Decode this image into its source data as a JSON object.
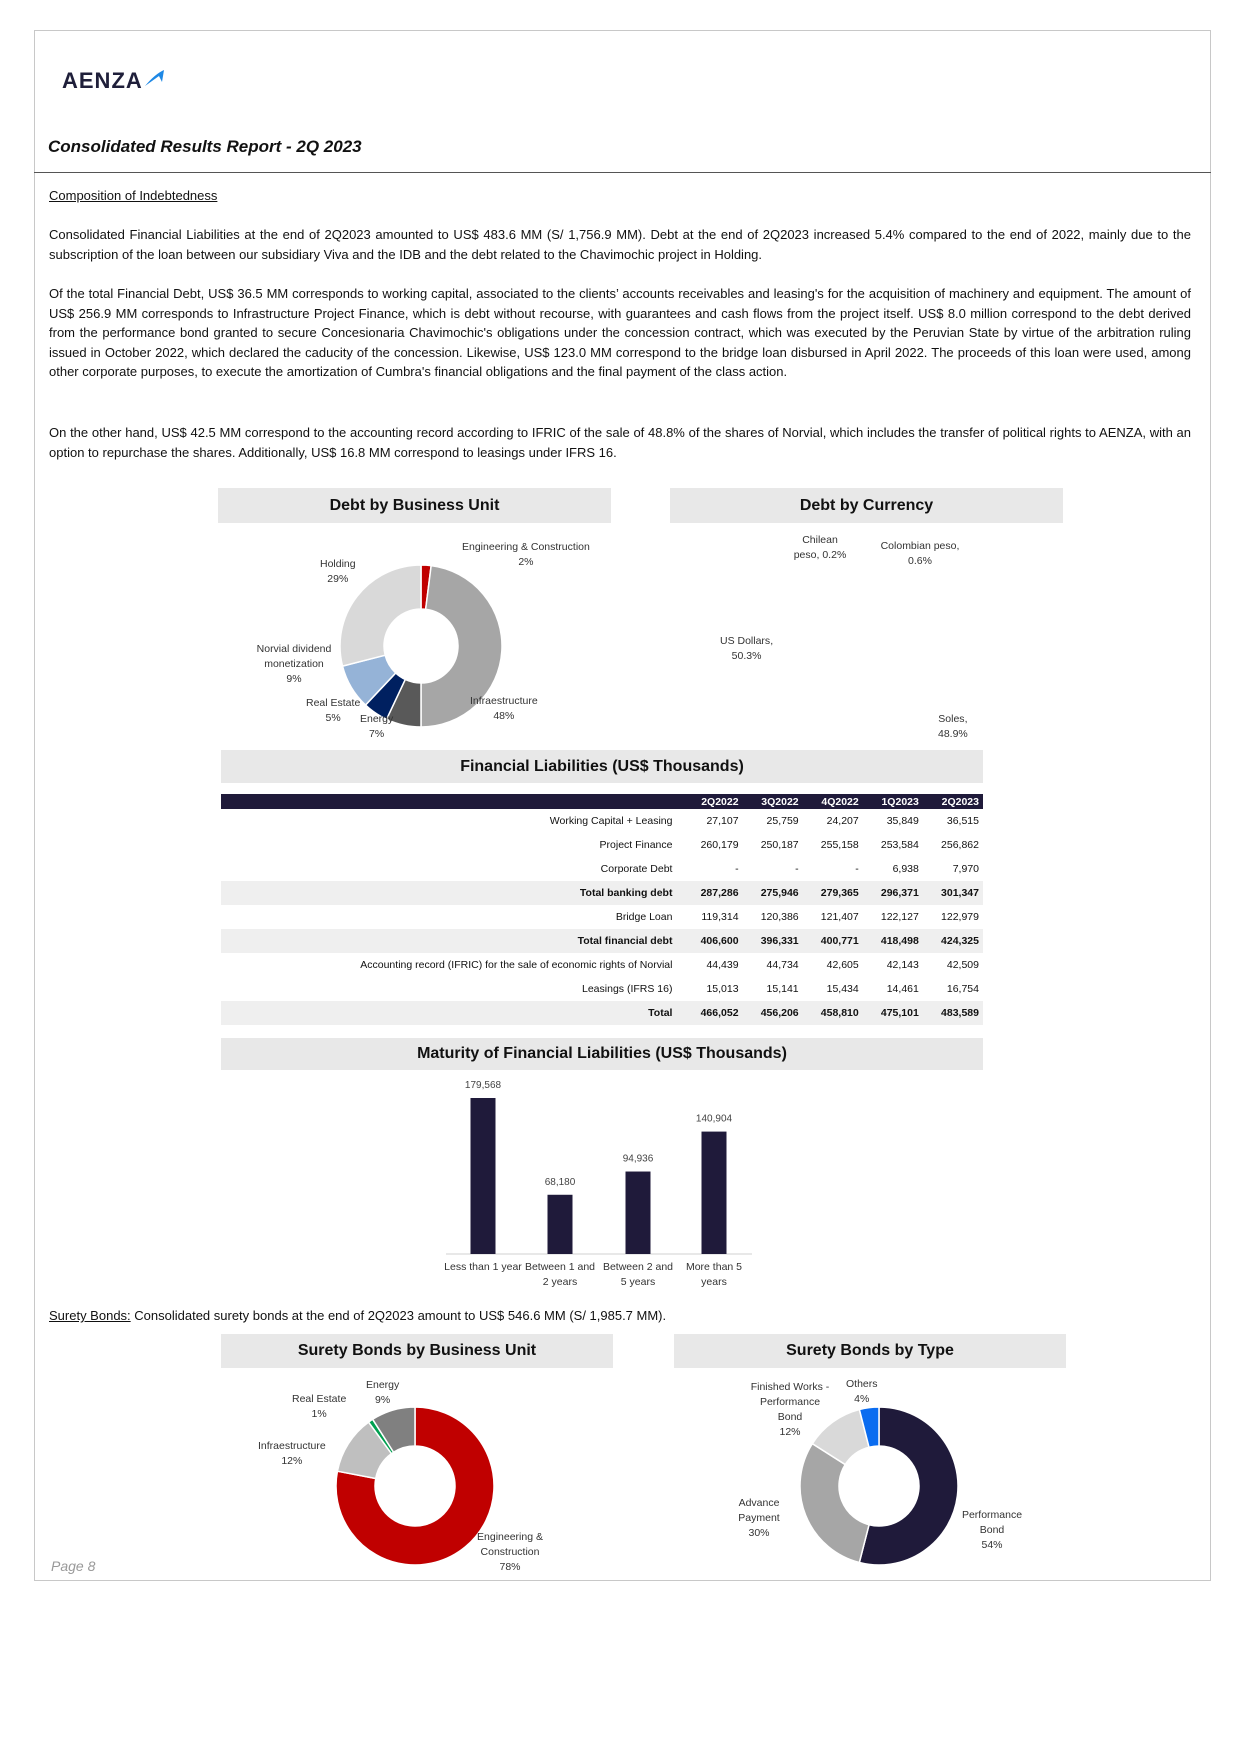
{
  "header": {
    "logo": "AENZA",
    "title": "Consolidated Results Report - 2Q 2023"
  },
  "section": {
    "heading": "Composition of Indebtedness",
    "p1": "Consolidated Financial Liabilities at the end of 2Q2023 amounted to US$ 483.6 MM (S/ 1,756.9 MM). Debt at the end of 2Q2023 increased 5.4% compared to the end of 2022, mainly due to the subscription of the loan between our subsidiary Viva and the IDB and the debt related to the Chavimochic project in Holding.",
    "p2": "Of the total Financial Debt, US$ 36.5 MM corresponds to working capital, associated to the clients’ accounts receivables and leasing's for the acquisition of machinery and equipment. The amount of US$ 256.9 MM corresponds to Infrastructure Project Finance, which is debt without recourse, with guarantees and cash flows from the project itself. US$ 8.0 million correspond to the debt derived from the performance bond granted to secure Concesionaria Chavimochic's obligations under the concession contract, which was executed by the Peruvian State by virtue of the arbitration ruling issued in October 2022, which declared the caducity of the concession. Likewise, US$ 123.0 MM correspond to the bridge loan disbursed in April 2022. The proceeds of this loan were used, among other corporate purposes, to execute the amortization of Cumbra's financial obligations and the final payment of the class action.",
    "p3": "On the other hand, US$ 42.5 MM correspond to the accounting record according to IFRIC of the sale of 48.8% of the shares of Norvial, which includes the transfer of political rights to AENZA, with an option to repurchase the shares. Additionally, US$ 16.8 MM correspond to leasings under IFRS 16."
  },
  "surety": {
    "label": "Surety Bonds:",
    "text": " Consolidated surety bonds at the end of 2Q2023 amount to US$ 546.6 MM (S/ 1,985.7 MM)."
  },
  "table": {
    "title": "Financial Liabilities (US$ Thousands)",
    "columns": [
      "2Q2022",
      "3Q2022",
      "4Q2022",
      "1Q2023",
      "2Q2023"
    ],
    "rows": [
      {
        "label": "Working Capital + Leasing",
        "values": [
          "27,107",
          "25,759",
          "24,207",
          "35,849",
          "36,515"
        ]
      },
      {
        "label": "Project Finance",
        "values": [
          "260,179",
          "250,187",
          "255,158",
          "253,584",
          "256,862"
        ]
      },
      {
        "label": "Corporate Debt",
        "values": [
          "-",
          "-",
          "-",
          "6,938",
          "7,970"
        ]
      },
      {
        "label": "Total banking debt",
        "values": [
          "287,286",
          "275,946",
          "279,365",
          "296,371",
          "301,347"
        ]
      },
      {
        "label": "Bridge Loan",
        "values": [
          "119,314",
          "120,386",
          "121,407",
          "122,127",
          "122,979"
        ]
      },
      {
        "label": "Total financial debt",
        "values": [
          "406,600",
          "396,331",
          "400,771",
          "418,498",
          "424,325"
        ]
      },
      {
        "label": "Accounting record (IFRIC) for the sale of economic rights of Norvial",
        "values": [
          "44,439",
          "44,734",
          "42,605",
          "42,143",
          "42,509"
        ]
      },
      {
        "label": "Leasings (IFRS 16)",
        "values": [
          "15,013",
          "15,141",
          "15,434",
          "14,461",
          "16,754"
        ]
      },
      {
        "label": "Total",
        "values": [
          "466,052",
          "456,206",
          "458,810",
          "475,101",
          "483,589"
        ]
      }
    ]
  },
  "chart_data": [
    {
      "type": "pie",
      "title": "Debt by Business Unit",
      "categories": [
        "Engineering & Construction",
        "Infraestructure",
        "Energy",
        "Real Estate",
        "Norvial dividend monetization",
        "Holding"
      ],
      "values": [
        2,
        48,
        7,
        5,
        9,
        29
      ],
      "labels": [
        "2%",
        "48%",
        "7%",
        "5%",
        "9%",
        "29%"
      ],
      "colors": [
        "#c00000",
        "#a6a6a6",
        "#595959",
        "#002060",
        "#95b3d7",
        "#d9d9d9"
      ]
    },
    {
      "type": "pie",
      "title": "Debt by Currency",
      "categories": [
        "Soles",
        "US Dollars",
        "Chilean peso",
        "Colombian peso"
      ],
      "values": [
        48.9,
        50.3,
        0.2,
        0.6
      ],
      "labels": [
        "48.9%",
        "50.3%",
        "0.2%",
        "0.6%"
      ],
      "colors": [
        "#1f1a3a",
        "#808080",
        "#bfbfbf",
        "#c9c9e0"
      ]
    },
    {
      "type": "bar",
      "title": "Maturity of Financial Liabilities (US$ Thousands)",
      "categories": [
        "Less than 1 year",
        "Between 1 and 2 years",
        "Between 2 and 5 years",
        "More than 5 years"
      ],
      "values": [
        179568,
        68180,
        94936,
        140904
      ],
      "labels": [
        "179,568",
        "68,180",
        "94,936",
        "140,904"
      ],
      "ylim": [
        0,
        179568
      ],
      "color": "#1f1a3a"
    },
    {
      "type": "pie",
      "title": "Surety Bonds by Business Unit",
      "categories": [
        "Engineering & Construction",
        "Infraestructure",
        "Real Estate",
        "Energy"
      ],
      "values": [
        78,
        12,
        1,
        9
      ],
      "labels": [
        "78%",
        "12%",
        "1%",
        "9%"
      ],
      "colors": [
        "#c00000",
        "#bfbfbf",
        "#00a050",
        "#808080"
      ]
    },
    {
      "type": "pie",
      "title": "Surety Bonds by Type",
      "categories": [
        "Performance Bond",
        "Advance Payment",
        "Finished Works - Performance Bond",
        "Others"
      ],
      "values": [
        54,
        30,
        12,
        4
      ],
      "labels": [
        "54%",
        "30%",
        "12%",
        "4%"
      ],
      "colors": [
        "#1f1a3a",
        "#a6a6a6",
        "#d9d9d9",
        "#0a6cf0"
      ]
    }
  ],
  "footer": {
    "page": "Page 8"
  }
}
